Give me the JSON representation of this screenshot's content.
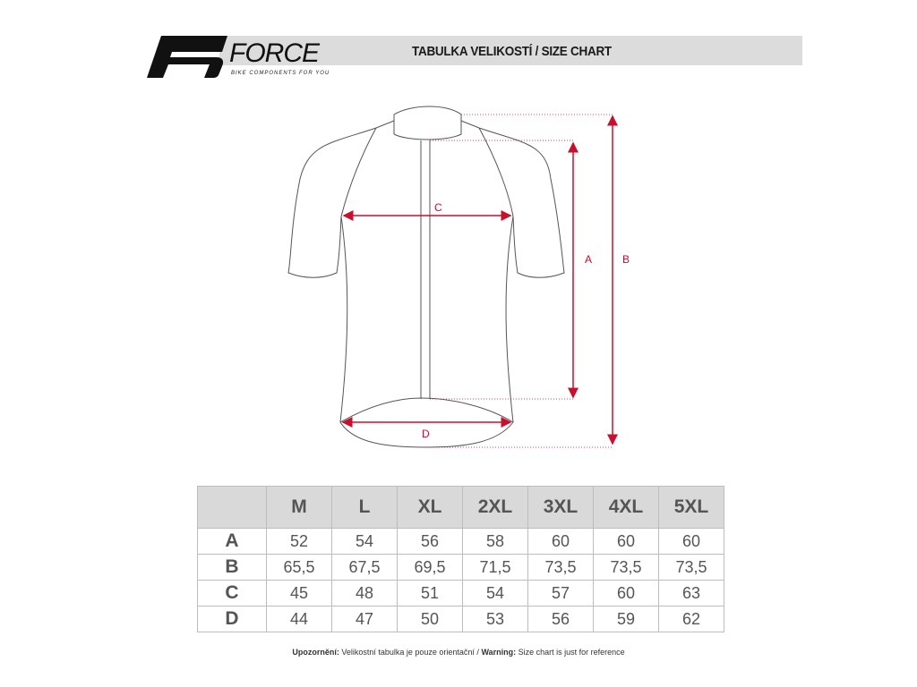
{
  "header": {
    "brand": "FORCE",
    "tagline": "BIKE COMPONENTS FOR YOU",
    "title": "TABULKA VELIKOSTÍ / SIZE CHART"
  },
  "diagram": {
    "labels": {
      "a": "A",
      "b": "B",
      "c": "C",
      "d": "D"
    },
    "accent_color": "#c8102e"
  },
  "table": {
    "columns": [
      "M",
      "L",
      "XL",
      "2XL",
      "3XL",
      "4XL",
      "5XL"
    ],
    "rows": [
      {
        "label": "A",
        "values": [
          "52",
          "54",
          "56",
          "58",
          "60",
          "60",
          "60"
        ]
      },
      {
        "label": "B",
        "values": [
          "65,5",
          "67,5",
          "69,5",
          "71,5",
          "73,5",
          "73,5",
          "73,5"
        ]
      },
      {
        "label": "C",
        "values": [
          "45",
          "48",
          "51",
          "54",
          "57",
          "60",
          "63"
        ]
      },
      {
        "label": "D",
        "values": [
          "44",
          "47",
          "50",
          "53",
          "56",
          "59",
          "62"
        ]
      }
    ]
  },
  "footer": {
    "warning_cz_label": "Upozornění:",
    "warning_cz_text": " Velikostní tabulka je pouze orientační / ",
    "warning_en_label": "Warning:",
    "warning_en_text": " Size chart is just for reference"
  }
}
